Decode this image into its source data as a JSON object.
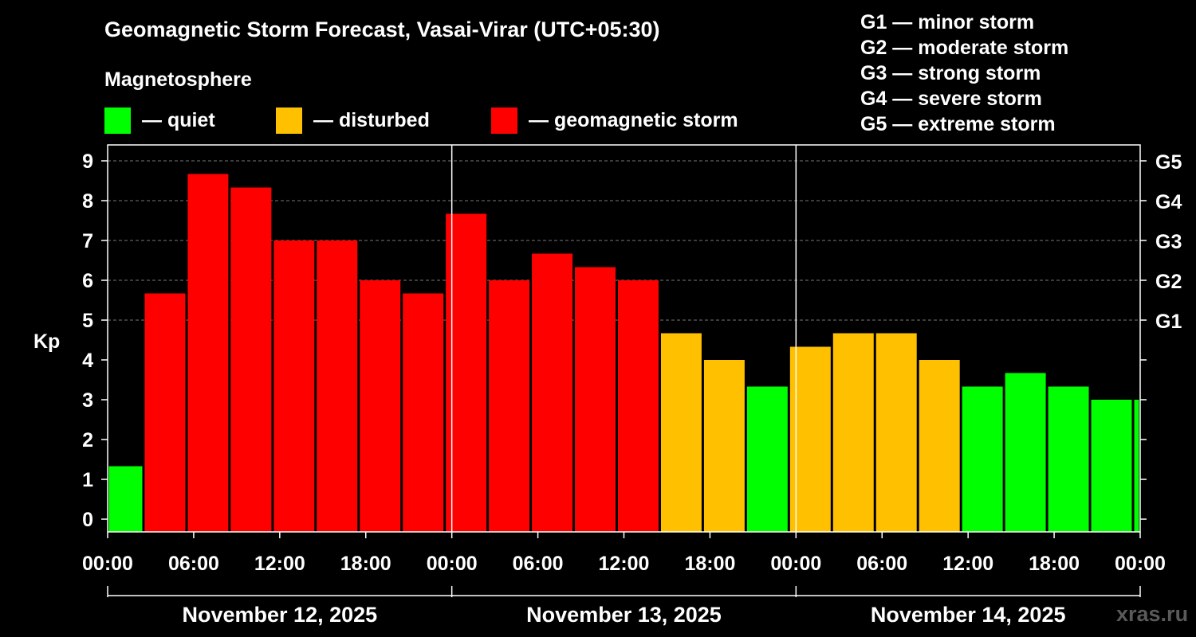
{
  "title": "Geomagnetic Storm Forecast, Vasai-Virar (UTC+05:30)",
  "legend": {
    "title": "Magnetosphere",
    "items": [
      {
        "label": "— quiet",
        "color": "#00ff00"
      },
      {
        "label": "— disturbed",
        "color": "#ffc000"
      },
      {
        "label": "— geomagnetic storm",
        "color": "#ff0000"
      }
    ]
  },
  "g_scale_legend": [
    "G1 — minor storm",
    "G2 — moderate storm",
    "G3 — strong storm",
    "G4 — severe storm",
    "G5 — extreme storm"
  ],
  "watermark": "xras.ru",
  "chart_data": {
    "type": "bar",
    "ylabel": "Kp",
    "ylim": [
      0,
      9
    ],
    "y_ticks": [
      "0",
      "1",
      "2",
      "3",
      "4",
      "5",
      "6",
      "7",
      "8",
      "9"
    ],
    "right_axis_ticks": [
      {
        "label": "G1",
        "kp": 5
      },
      {
        "label": "G2",
        "kp": 6
      },
      {
        "label": "G3",
        "kp": 7
      },
      {
        "label": "G4",
        "kp": 8
      },
      {
        "label": "G5",
        "kp": 9
      }
    ],
    "x_tick_labels": [
      "00:00",
      "06:00",
      "12:00",
      "18:00",
      "00:00",
      "06:00",
      "12:00",
      "18:00",
      "00:00",
      "06:00",
      "12:00",
      "18:00",
      "00:00"
    ],
    "day_labels": [
      "November 12, 2025",
      "November 13, 2025",
      "November 14, 2025"
    ],
    "grid": "dashed horizontal at Kp 5–9",
    "colors": {
      "quiet": "#00ff00",
      "disturbed": "#ffc000",
      "storm": "#ff0000"
    },
    "bars": [
      {
        "start_hour": 0,
        "end_hour": 2.5,
        "kp": 1.33
      },
      {
        "start_hour": 2.5,
        "end_hour": 5.5,
        "kp": 5.67
      },
      {
        "start_hour": 5.5,
        "end_hour": 8.5,
        "kp": 8.67
      },
      {
        "start_hour": 8.5,
        "end_hour": 11.5,
        "kp": 8.33
      },
      {
        "start_hour": 11.5,
        "end_hour": 14.5,
        "kp": 7.0
      },
      {
        "start_hour": 14.5,
        "end_hour": 17.5,
        "kp": 7.0
      },
      {
        "start_hour": 17.5,
        "end_hour": 20.5,
        "kp": 6.0
      },
      {
        "start_hour": 20.5,
        "end_hour": 23.5,
        "kp": 5.67
      },
      {
        "start_hour": 23.5,
        "end_hour": 26.5,
        "kp": 7.67
      },
      {
        "start_hour": 26.5,
        "end_hour": 29.5,
        "kp": 6.0
      },
      {
        "start_hour": 29.5,
        "end_hour": 32.5,
        "kp": 6.67
      },
      {
        "start_hour": 32.5,
        "end_hour": 35.5,
        "kp": 6.33
      },
      {
        "start_hour": 35.5,
        "end_hour": 38.5,
        "kp": 6.0
      },
      {
        "start_hour": 38.5,
        "end_hour": 41.5,
        "kp": 4.67
      },
      {
        "start_hour": 41.5,
        "end_hour": 44.5,
        "kp": 4.0
      },
      {
        "start_hour": 44.5,
        "end_hour": 47.5,
        "kp": 3.33
      },
      {
        "start_hour": 47.5,
        "end_hour": 50.5,
        "kp": 4.33
      },
      {
        "start_hour": 50.5,
        "end_hour": 53.5,
        "kp": 4.67
      },
      {
        "start_hour": 53.5,
        "end_hour": 56.5,
        "kp": 4.67
      },
      {
        "start_hour": 56.5,
        "end_hour": 59.5,
        "kp": 4.0
      },
      {
        "start_hour": 59.5,
        "end_hour": 62.5,
        "kp": 3.33
      },
      {
        "start_hour": 62.5,
        "end_hour": 65.5,
        "kp": 3.67
      },
      {
        "start_hour": 65.5,
        "end_hour": 68.5,
        "kp": 3.33
      },
      {
        "start_hour": 68.5,
        "end_hour": 71.5,
        "kp": 3.0
      },
      {
        "start_hour": 71.5,
        "end_hour": 72,
        "kp": 3.0
      }
    ]
  }
}
